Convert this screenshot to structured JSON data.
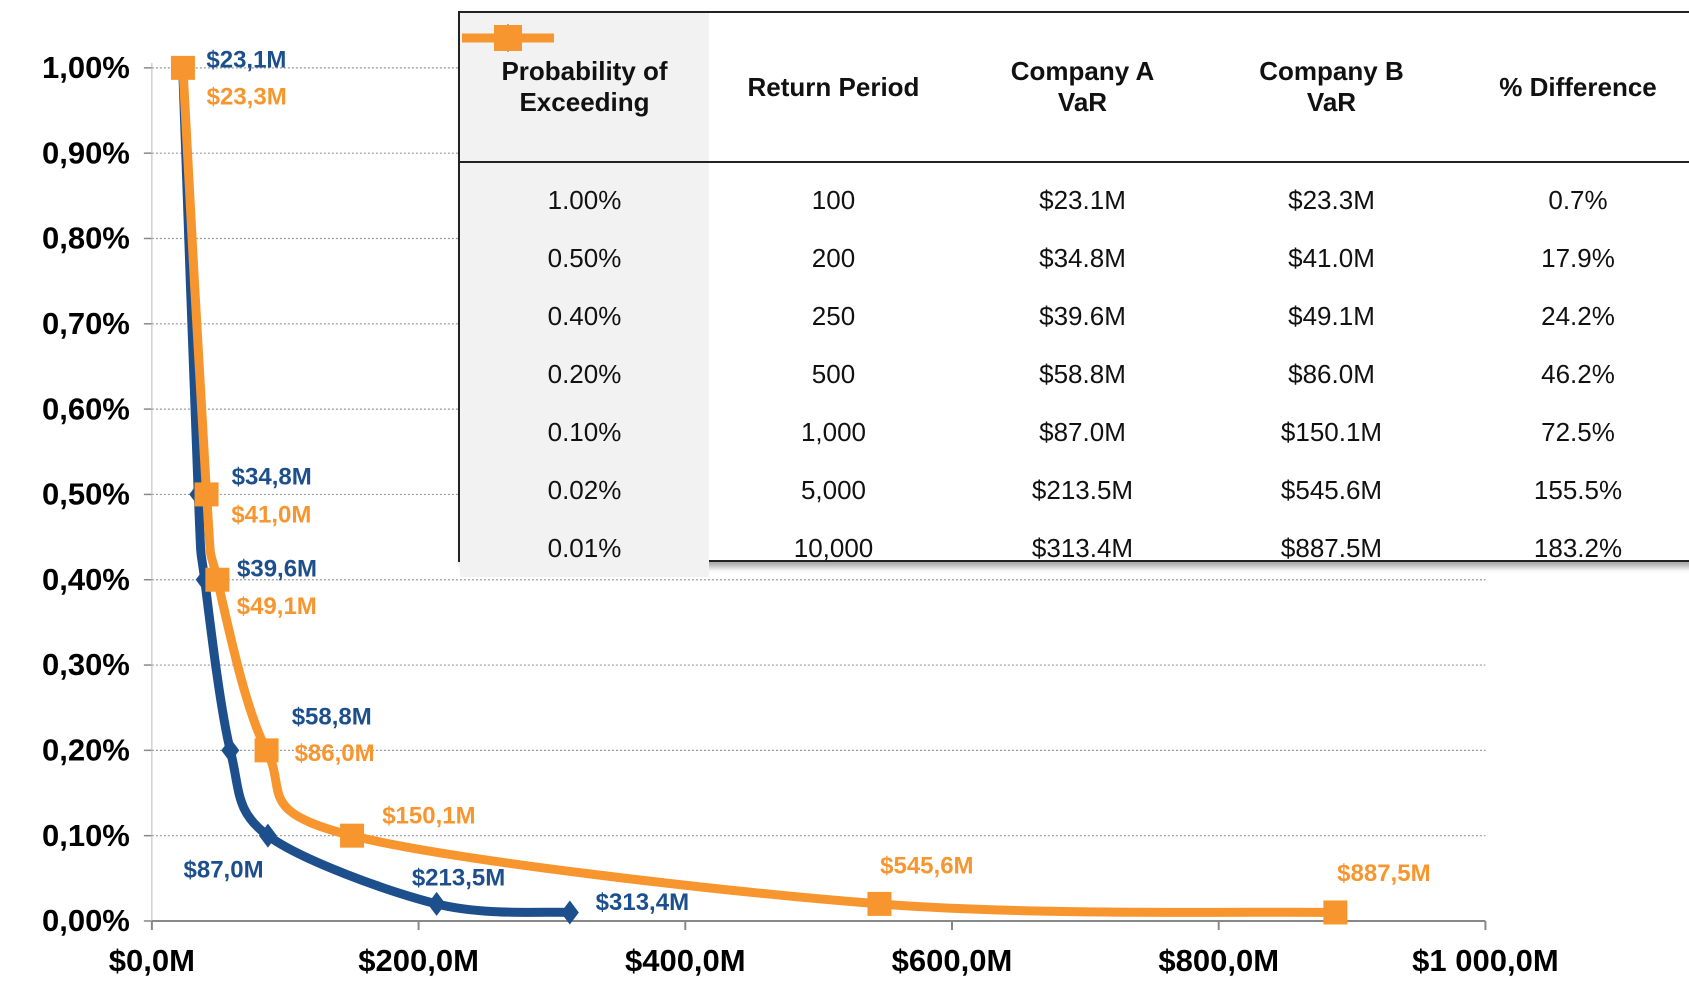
{
  "chart_data": {
    "type": "line",
    "series": [
      {
        "name": "Company A VaR",
        "color": "#1c4f8c",
        "marker": "diamond",
        "x": [
          23.1,
          34.8,
          39.6,
          58.8,
          87.0,
          213.5,
          313.4
        ],
        "values": [
          1.0,
          0.5,
          0.4,
          0.2,
          0.1,
          0.02,
          0.01
        ],
        "x_labels": [
          "$23,1M",
          "$34,8M",
          "$39,6M",
          "$58,8M",
          "$87,0M",
          "$213,5M",
          "$313,4M"
        ]
      },
      {
        "name": "Company B VaR",
        "color": "#f7962e",
        "marker": "square",
        "x": [
          23.3,
          41.0,
          49.1,
          86.0,
          150.1,
          545.6,
          887.5
        ],
        "values": [
          1.0,
          0.5,
          0.4,
          0.2,
          0.1,
          0.02,
          0.01
        ],
        "x_labels": [
          "$23,3M",
          "$41,0M",
          "$49,1M",
          "$86,0M",
          "$150,1M",
          "$545,6M",
          "$887,5M"
        ]
      }
    ],
    "xlim": [
      0,
      1000
    ],
    "xticks": [
      {
        "value": 0,
        "label": "$0,0M"
      },
      {
        "value": 200,
        "label": "$200,0M"
      },
      {
        "value": 400,
        "label": "$400,0M"
      },
      {
        "value": 600,
        "label": "$600,0M"
      },
      {
        "value": 800,
        "label": "$800,0M"
      },
      {
        "value": 1000,
        "label": "$1 000,0M"
      }
    ],
    "ylim": [
      0,
      1
    ],
    "yticks": [
      {
        "value": 0,
        "label": "0,00%"
      },
      {
        "value": 0.1,
        "label": "0,10%"
      },
      {
        "value": 0.2,
        "label": "0,20%"
      },
      {
        "value": 0.3,
        "label": "0,30%"
      },
      {
        "value": 0.4,
        "label": "0,40%"
      },
      {
        "value": 0.5,
        "label": "0,50%"
      },
      {
        "value": 0.6,
        "label": "0,60%"
      },
      {
        "value": 0.7,
        "label": "0,70%"
      },
      {
        "value": 0.8,
        "label": "0,80%"
      },
      {
        "value": 0.9,
        "label": "0,90%"
      },
      {
        "value": 1,
        "label": "1,00%"
      }
    ],
    "grid": true
  },
  "table": {
    "columns": [
      "Probability of Exceeding",
      "Return Period",
      "Company A VaR",
      "Company B VaR",
      "% Difference"
    ],
    "rows": [
      [
        "1.00%",
        "100",
        "$23.1M",
        "$23.3M",
        "0.7%"
      ],
      [
        "0.50%",
        "200",
        "$34.8M",
        "$41.0M",
        "17.9%"
      ],
      [
        "0.40%",
        "250",
        "$39.6M",
        "$49.1M",
        "24.2%"
      ],
      [
        "0.20%",
        "500",
        "$58.8M",
        "$86.0M",
        "46.2%"
      ],
      [
        "0.10%",
        "1,000",
        "$87.0M",
        "$150.1M",
        "72.5%"
      ],
      [
        "0.02%",
        "5,000",
        "$213.5M",
        "$545.6M",
        "155.5%"
      ],
      [
        "0.01%",
        "10,000",
        "$313.4M",
        "$887.5M",
        "183.2%"
      ]
    ]
  }
}
